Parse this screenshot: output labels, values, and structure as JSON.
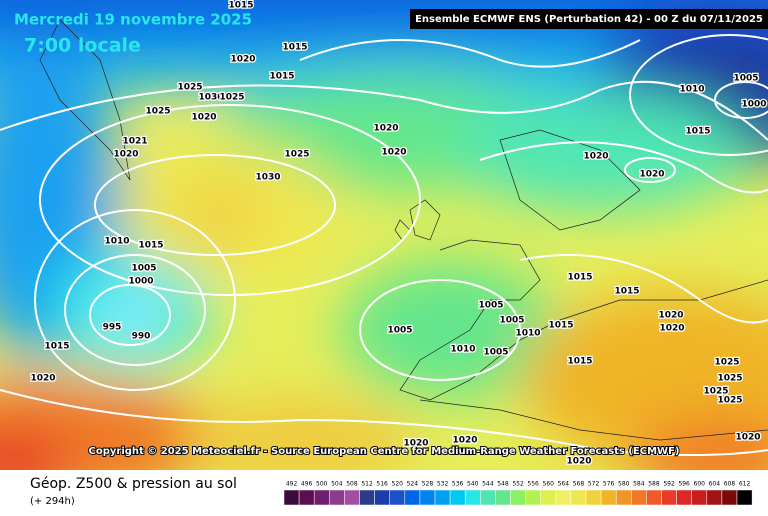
{
  "header": {
    "date": "Mercredi 19 novembre 2025",
    "time": "7:00 locale",
    "run": "Ensemble ECMWF ENS  (Perturbation 42)  -  00 Z du 07/11/2025"
  },
  "map": {
    "copyright": "Copyright © 2025 Meteociel.fr - Source European Centre for Medium-Range Weather Forecasts (ECMWF)",
    "isobar_labels": [
      1015,
      1015,
      1020,
      1015,
      1025,
      1030,
      1025,
      1025,
      1020,
      1020,
      1025,
      1020,
      1030,
      1020,
      1020,
      1010,
      1005,
      1000,
      1015,
      1021,
      1020,
      1010,
      1015,
      1005,
      1000,
      995,
      990,
      1015,
      1020,
      1005,
      1005,
      1005,
      1010,
      1010,
      1005,
      1015,
      1015,
      1015,
      1015,
      1020,
      1020,
      1025,
      1025,
      1025,
      1025,
      1020,
      1020,
      1020,
      1020
    ]
  },
  "footer": {
    "title": "Géop. Z500 & pression au sol",
    "lead": "(+ 294h)",
    "scale": {
      "values": [
        492,
        496,
        500,
        504,
        508,
        512,
        516,
        520,
        524,
        528,
        532,
        536,
        540,
        544,
        548,
        552,
        556,
        560,
        564,
        568,
        572,
        576,
        580,
        584,
        588,
        592,
        596,
        600,
        604,
        608,
        612
      ],
      "colors": [
        "#3c0a3c",
        "#5a1050",
        "#6e1e6e",
        "#8c3c8c",
        "#a050a0",
        "#283c8c",
        "#1e3caa",
        "#1e50c8",
        "#0064e6",
        "#0082f0",
        "#00a0f0",
        "#00c8f0",
        "#28e6e6",
        "#50e6b4",
        "#64e68c",
        "#8cf064",
        "#b4f050",
        "#dcf050",
        "#f0f064",
        "#f0e650",
        "#f0d23c",
        "#f0b428",
        "#f09628",
        "#f07828",
        "#f05a28",
        "#e63c28",
        "#dc2828",
        "#c81e1e",
        "#a01414",
        "#780a0a",
        "#000000"
      ]
    }
  }
}
